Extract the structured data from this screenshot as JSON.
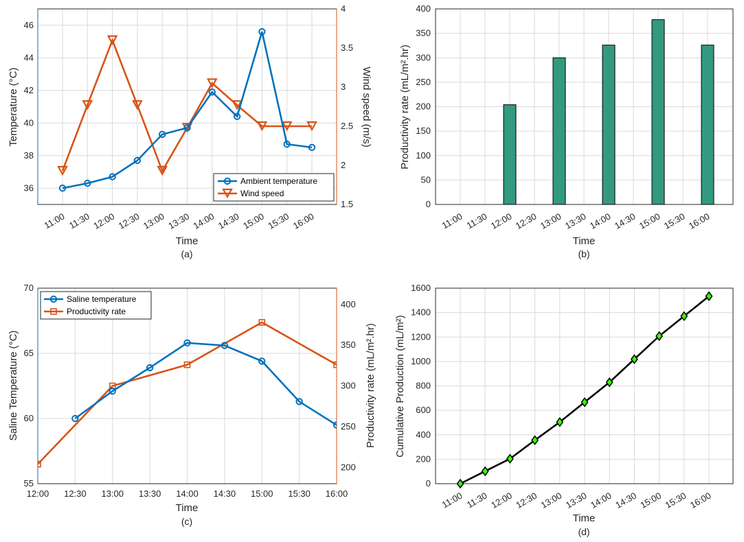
{
  "colors": {
    "blue": "#0072BD",
    "orange": "#D95319",
    "green": "#339980",
    "black": "#000000",
    "lime": "#33ff00"
  },
  "chart_data": [
    {
      "panel": "a",
      "type": "line",
      "caption": "(a)",
      "xlabel": "Time",
      "ylabel": "Temperature (°C)",
      "y2label": "Wind speed (m/s)",
      "categories": [
        "11:00",
        "11:30",
        "12:00",
        "12:30",
        "13:00",
        "13:30",
        "14:00",
        "14:30",
        "15:00",
        "15:30",
        "16:00"
      ],
      "ylim": [
        35,
        47
      ],
      "yticks": [
        "36",
        "38",
        "40",
        "42",
        "44",
        "46"
      ],
      "y2lim": [
        1.5,
        4
      ],
      "y2ticks": [
        "1.5",
        "2",
        "2.5",
        "3",
        "3.5",
        "4"
      ],
      "legend_position": "bottom-right",
      "series": [
        {
          "name": "Ambient temperature",
          "axis": "left",
          "values": [
            36.0,
            36.3,
            36.7,
            37.7,
            39.3,
            39.7,
            41.9,
            40.4,
            45.6,
            38.7,
            38.5
          ]
        },
        {
          "name": "Wind speed",
          "axis": "right",
          "values": [
            1.93,
            2.77,
            3.6,
            2.77,
            1.93,
            2.48,
            3.05,
            2.77,
            2.5,
            2.5,
            2.5
          ]
        }
      ]
    },
    {
      "panel": "b",
      "type": "bar",
      "caption": "(b)",
      "xlabel": "Time",
      "ylabel": "Productivity rate (mL/m².hr)",
      "categories": [
        "11:00",
        "11:30",
        "12:00",
        "12:30",
        "13:00",
        "13:30",
        "14:00",
        "14:30",
        "15:00",
        "15:30",
        "16:00"
      ],
      "values": [
        0,
        0,
        204,
        0,
        300,
        0,
        326,
        0,
        378,
        0,
        326
      ],
      "ylim": [
        0,
        400
      ],
      "yticks": [
        "0",
        "50",
        "100",
        "150",
        "200",
        "250",
        "300",
        "350",
        "400"
      ]
    },
    {
      "panel": "c",
      "type": "line",
      "caption": "(c)",
      "xlabel": "Time",
      "ylabel": "Saline Temperature (°C)",
      "y2label": "Productivity rate (mL/m².hr)",
      "categories": [
        "12:00",
        "12:30",
        "13:00",
        "13:30",
        "14:00",
        "14:30",
        "15:00",
        "15:30",
        "16:00"
      ],
      "ylim": [
        55,
        70
      ],
      "yticks": [
        "55",
        "60",
        "65",
        "70"
      ],
      "y2lim": [
        180,
        420
      ],
      "y2ticks": [
        "200",
        "250",
        "300",
        "350",
        "400"
      ],
      "legend_position": "top-left",
      "series": [
        {
          "name": "Saline temperature",
          "axis": "left",
          "values": [
            null,
            60.0,
            62.1,
            63.9,
            65.8,
            65.6,
            64.4,
            61.3,
            59.5
          ]
        },
        {
          "name": "Productivity rate",
          "axis": "right",
          "values": [
            204,
            null,
            300,
            null,
            326,
            null,
            378,
            null,
            326
          ]
        }
      ]
    },
    {
      "panel": "d",
      "type": "line",
      "caption": "(d)",
      "xlabel": "Time",
      "ylabel": "Cumulative Production (mL/m²)",
      "categories": [
        "11:00",
        "11:30",
        "12:00",
        "12:30",
        "13:00",
        "13:30",
        "14:00",
        "14:30",
        "15:00",
        "15:30",
        "16:00"
      ],
      "ylim": [
        0,
        1600
      ],
      "yticks": [
        "0",
        "200",
        "400",
        "600",
        "800",
        "1000",
        "1200",
        "1400",
        "1600"
      ],
      "series": [
        {
          "name": "Cumulative production",
          "values": [
            0,
            102,
            204,
            356,
            504,
            667,
            830,
            1019,
            1208,
            1371,
            1534
          ]
        }
      ]
    }
  ]
}
